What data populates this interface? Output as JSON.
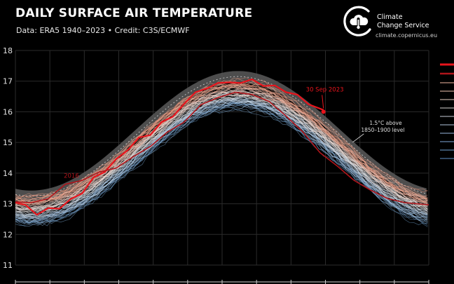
{
  "header": {
    "title": "DAILY SURFACE AIR TEMPERATURE",
    "subtitle": "Data: ERA5 1940–2023 • Credit: C3S/ECMWF"
  },
  "brand": {
    "name_line1": "Climate",
    "name_line2": "Change Service",
    "url": "climate.copernicus.eu",
    "logo_icon": "thermometer-cloud-icon"
  },
  "colors": {
    "background": "#000000",
    "highlight_2023": "#e8141c",
    "highlight_2016": "#b0151b",
    "threshold_band": "#5a5a5a",
    "cold_years": "#6fa3d6",
    "warm_years": "#f2b9a0"
  },
  "chart_data": {
    "type": "line",
    "title": "DAILY SURFACE AIR TEMPERATURE",
    "ylim": [
      11,
      18
    ],
    "yticks": [
      11,
      12,
      13,
      14,
      15,
      16,
      17,
      18
    ],
    "grid": true,
    "x_unit": "day of year",
    "xlim": [
      1,
      366
    ],
    "annotations": [
      {
        "text": "30 Sep 2023",
        "x": 273,
        "y": 16.0
      },
      {
        "text": "2016",
        "x": 45,
        "y": 13.8
      },
      {
        "text_line1": "1.5°C above",
        "text_line2": "1850–1900 level",
        "x": 300,
        "y": 15.6
      }
    ],
    "series": [
      {
        "name": "2023",
        "x": [
          1,
          10,
          20,
          30,
          40,
          50,
          60,
          70,
          80,
          90,
          100,
          110,
          120,
          130,
          140,
          150,
          160,
          170,
          180,
          190,
          200,
          210,
          220,
          230,
          240,
          250,
          260,
          273
        ],
        "values": [
          13.1,
          12.9,
          12.7,
          12.8,
          12.9,
          13.1,
          13.4,
          13.8,
          14.1,
          14.4,
          14.8,
          15.1,
          15.3,
          15.6,
          15.9,
          16.2,
          16.7,
          16.7,
          17.0,
          16.9,
          17.0,
          17.0,
          16.9,
          16.8,
          16.7,
          16.5,
          16.3,
          16.0
        ]
      },
      {
        "name": "2016",
        "x": [
          1,
          15,
          30,
          45,
          60,
          75,
          90,
          105,
          120,
          135,
          150,
          165,
          180,
          195,
          210,
          225,
          240,
          255,
          270,
          285,
          300,
          315,
          330,
          345,
          366
        ],
        "values": [
          13.1,
          13.0,
          13.2,
          13.6,
          13.8,
          14.0,
          14.2,
          14.5,
          14.9,
          15.3,
          15.7,
          16.2,
          16.5,
          16.6,
          16.6,
          16.3,
          15.9,
          15.3,
          14.7,
          14.2,
          13.8,
          13.4,
          13.2,
          13.0,
          13.0
        ]
      }
    ]
  }
}
